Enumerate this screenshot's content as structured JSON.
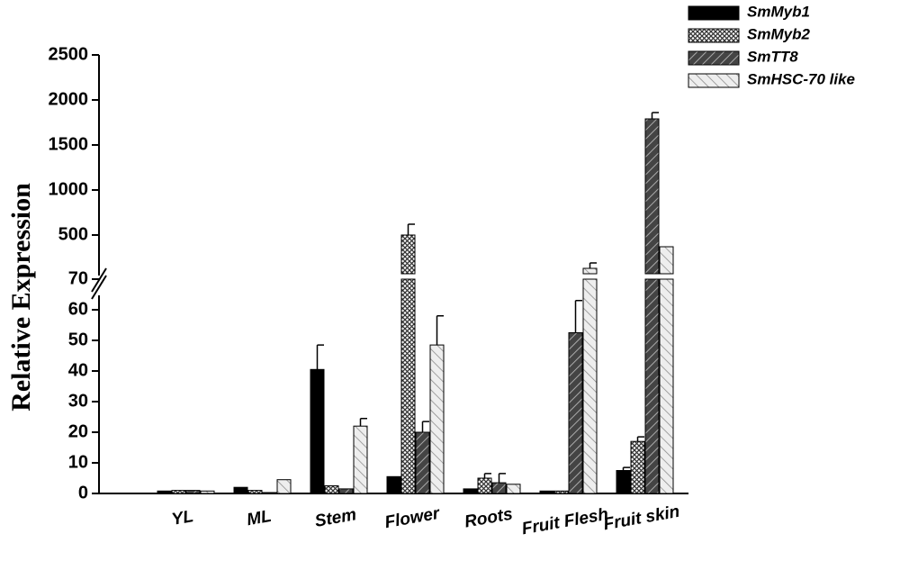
{
  "chart_data": {
    "type": "bar",
    "y_label": "Relative Expression",
    "categories": [
      "YL",
      "ML",
      "Stem",
      "Flower",
      "Roots",
      "Fruit Flesh",
      "Fruit skin"
    ],
    "series": [
      {
        "name": "SmMyb1",
        "color": "#000000",
        "pattern": "solid",
        "values": [
          0.8,
          2,
          40.5,
          5.5,
          1.5,
          0.8,
          7.5
        ],
        "errors": [
          null,
          null,
          8,
          null,
          null,
          null,
          1
        ]
      },
      {
        "name": "SmMyb2",
        "color": "#888888",
        "pattern": "crosshatch",
        "values": [
          1,
          1,
          2.5,
          500,
          5,
          0.8,
          17
        ],
        "errors": [
          null,
          null,
          null,
          120,
          1.5,
          null,
          1.5
        ]
      },
      {
        "name": "SmTT8",
        "color": "#555555",
        "pattern": "diagonal",
        "values": [
          1,
          0.3,
          1.5,
          20,
          3.5,
          52.5,
          1790
        ],
        "errors": [
          null,
          null,
          null,
          3.5,
          3,
          10.5,
          70
        ]
      },
      {
        "name": "SmHSC-70 like",
        "color": "#dddddd",
        "pattern": "diagonal-light",
        "values": [
          0.8,
          4.5,
          22,
          48.5,
          3,
          130,
          370
        ],
        "errors": [
          null,
          null,
          2.5,
          9.5,
          null,
          60,
          null
        ]
      }
    ],
    "ylim": [
      0,
      70
    ],
    "yticks": [
      0,
      10,
      20,
      30,
      40,
      50,
      60,
      70
    ],
    "upper_ylim": [
      10,
      2500
    ],
    "upper_yticks": [
      500,
      1000,
      1500,
      2000,
      2500
    ],
    "axis_break": true,
    "legend": "top-right",
    "grid": false
  }
}
